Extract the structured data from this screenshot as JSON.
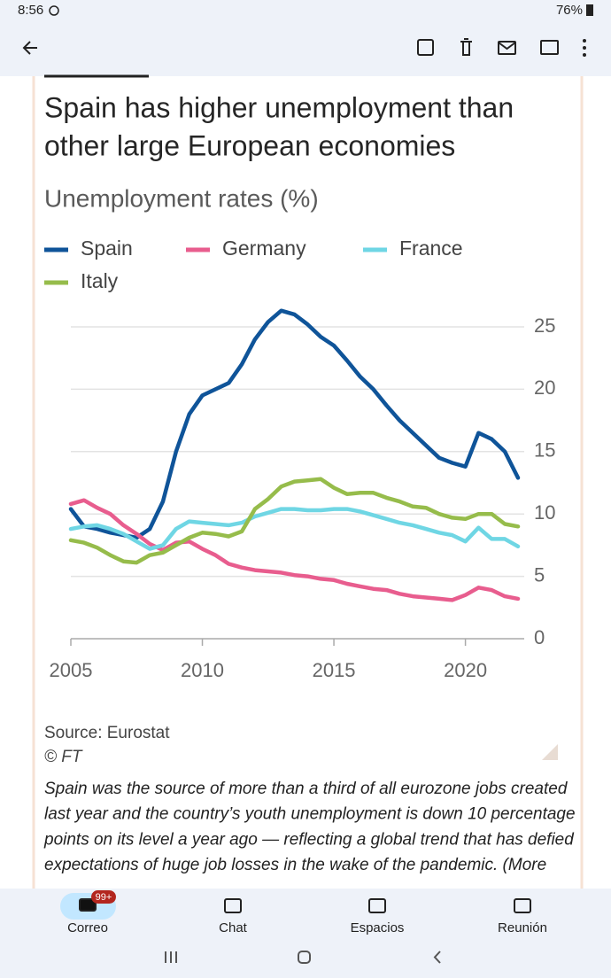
{
  "status_bar": {
    "time": "8:56",
    "battery": "76%"
  },
  "chart_data": {
    "type": "line",
    "title_lines": [
      "Spain has higher unemployment than",
      "other large European economies"
    ],
    "subtitle": "Unemployment rates (%)",
    "x": [
      2005,
      2005.5,
      2006,
      2006.5,
      2007,
      2007.5,
      2008,
      2008.5,
      2009,
      2009.5,
      2010,
      2010.5,
      2011,
      2011.5,
      2012,
      2012.5,
      2013,
      2013.5,
      2014,
      2014.5,
      2015,
      2015.5,
      2016,
      2016.5,
      2017,
      2017.5,
      2018,
      2018.5,
      2019,
      2019.5,
      2020,
      2020.5,
      2021,
      2021.5,
      2022
    ],
    "series": [
      {
        "name": "Spain",
        "color": "#0f5499",
        "values": [
          10.4,
          9.0,
          8.8,
          8.5,
          8.3,
          8.1,
          8.8,
          11.0,
          15.0,
          18.0,
          19.5,
          20.0,
          20.5,
          22.0,
          24.0,
          25.4,
          26.3,
          26.0,
          25.2,
          24.2,
          23.5,
          22.3,
          21.0,
          20.0,
          18.7,
          17.5,
          16.5,
          15.5,
          14.5,
          14.1,
          13.8,
          16.5,
          16.0,
          15.0,
          12.9
        ]
      },
      {
        "name": "Germany",
        "color": "#e85d8e",
        "values": [
          10.8,
          11.1,
          10.5,
          10.0,
          9.1,
          8.4,
          7.6,
          7.1,
          7.7,
          7.8,
          7.2,
          6.7,
          6.0,
          5.7,
          5.5,
          5.4,
          5.3,
          5.1,
          5.0,
          4.8,
          4.7,
          4.4,
          4.2,
          4.0,
          3.9,
          3.6,
          3.4,
          3.3,
          3.2,
          3.1,
          3.5,
          4.1,
          3.9,
          3.4,
          3.2
        ]
      },
      {
        "name": "France",
        "color": "#6fd6e4",
        "values": [
          8.8,
          9.0,
          9.1,
          8.8,
          8.4,
          7.8,
          7.2,
          7.5,
          8.8,
          9.4,
          9.3,
          9.2,
          9.1,
          9.3,
          9.8,
          10.1,
          10.4,
          10.4,
          10.3,
          10.3,
          10.4,
          10.4,
          10.2,
          9.9,
          9.6,
          9.3,
          9.1,
          8.8,
          8.5,
          8.3,
          7.8,
          8.9,
          8.0,
          8.0,
          7.4
        ]
      },
      {
        "name": "Italy",
        "color": "#96bc4b",
        "values": [
          7.9,
          7.7,
          7.3,
          6.7,
          6.2,
          6.1,
          6.7,
          6.9,
          7.5,
          8.1,
          8.5,
          8.4,
          8.2,
          8.6,
          10.4,
          11.2,
          12.2,
          12.6,
          12.7,
          12.8,
          12.1,
          11.6,
          11.7,
          11.7,
          11.3,
          11.0,
          10.6,
          10.5,
          10.0,
          9.7,
          9.6,
          10.0,
          10.0,
          9.2,
          9.0
        ]
      }
    ],
    "xlim": [
      2005,
      2022
    ],
    "xticks": [
      2005,
      2010,
      2015,
      2020
    ],
    "ylim": [
      0,
      27
    ],
    "yticks": [
      0,
      5,
      10,
      15,
      20,
      25
    ],
    "grid": true
  },
  "source": "Source: Eurostat",
  "copyright": "© FT",
  "caption_lines": [
    "Spain was the source of more than a third of all eurozone jobs created",
    "last year and the country’s youth unemployment is down 10 percentage",
    "points on its level a year ago — reflecting a global trend that has defied",
    "expectations of huge job losses in the wake of the pandemic. (More"
  ],
  "nav": {
    "badge": "99+",
    "items": [
      "Correo",
      "Chat",
      "Espacios",
      "Reunión"
    ]
  }
}
